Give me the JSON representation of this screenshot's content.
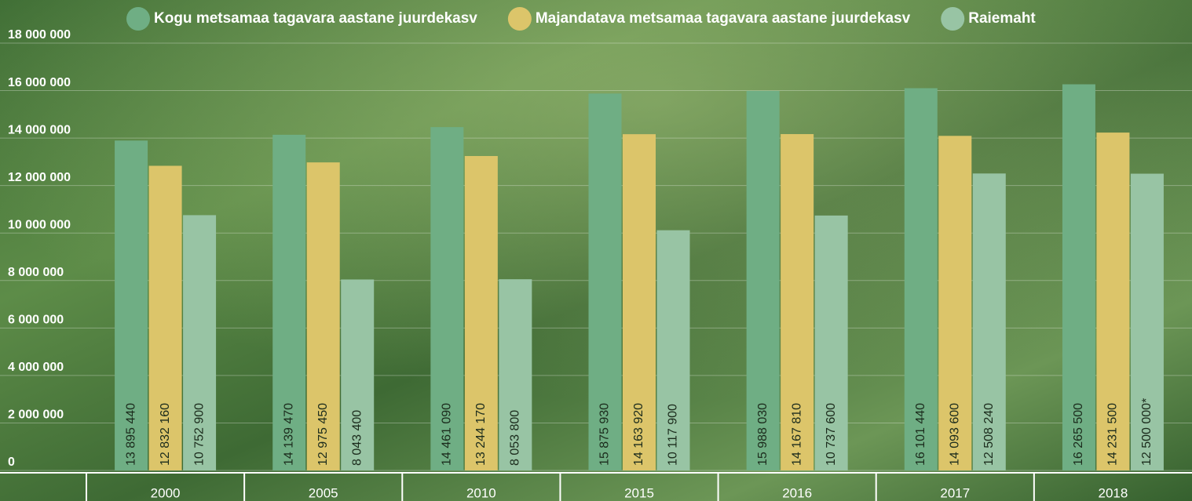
{
  "chart_data": {
    "type": "bar",
    "categories": [
      "2000",
      "2005",
      "2010",
      "2015",
      "2016",
      "2017",
      "2018"
    ],
    "series": [
      {
        "name": "Kogu metsamaa tagavara aastane juurdekasv",
        "color": "#6fae84",
        "values": [
          13895440,
          14139470,
          14461090,
          15875930,
          15988030,
          16101440,
          16265500
        ],
        "value_labels": [
          "13 895 440",
          "14 139 470",
          "14 461 090",
          "15 875 930",
          "15 988 030",
          "16 101 440",
          "16 265 500"
        ]
      },
      {
        "name": "Majandatava metsamaa tagavara aastane juurdekasv",
        "color": "#dcc56a",
        "values": [
          12832160,
          12975450,
          13244170,
          14163920,
          14167810,
          14093600,
          14231500
        ],
        "value_labels": [
          "12 832 160",
          "12 975 450",
          "13 244 170",
          "14 163 920",
          "14 167 810",
          "14 093 600",
          "14 231 500"
        ]
      },
      {
        "name": "Raiemaht",
        "color": "#98c4a4",
        "values": [
          10752900,
          8043400,
          8053800,
          10117900,
          10737600,
          12508240,
          12500000
        ],
        "value_labels": [
          "10 752 900",
          "8 043 400",
          "8 053 800",
          "10 117 900",
          "10 737 600",
          "12 508 240",
          "12 500 000*"
        ]
      }
    ],
    "ylim": [
      0,
      18000000
    ],
    "yticks": [
      0,
      {
        "value": 2000000,
        "label": "2 000 000"
      },
      {
        "value": 4000000,
        "label": "4 000 000"
      },
      {
        "value": 6000000,
        "label": "6 000 000"
      },
      {
        "value": 8000000,
        "label": "8 000 000"
      },
      {
        "value": 10000000,
        "label": "10 000 000"
      },
      {
        "value": 12000000,
        "label": "12 000 000"
      },
      {
        "value": 14000000,
        "label": "14 000 000"
      },
      {
        "value": 16000000,
        "label": "16 000 000"
      },
      {
        "value": 18000000,
        "label": "18 000 000"
      }
    ],
    "grid": true
  }
}
